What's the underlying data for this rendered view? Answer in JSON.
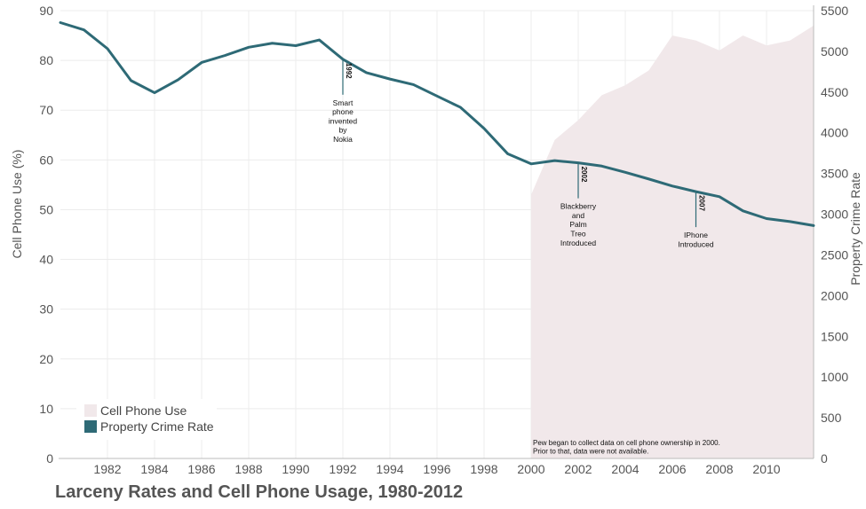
{
  "chart_data": {
    "type": "line",
    "title": "Larceny Rates and Cell Phone Usage, 1980-2012",
    "xlabel": "",
    "ylabel_left": "Cell Phone Use (%)",
    "ylabel_right": "Property Crime Rate",
    "xlim": [
      1980,
      2012
    ],
    "ylim_left": [
      0,
      90
    ],
    "ylim_right": [
      0,
      5500
    ],
    "x_ticks": [
      "1982",
      "1984",
      "1986",
      "1988",
      "1990",
      "1992",
      "1994",
      "1996",
      "1998",
      "2000",
      "2002",
      "2004",
      "2006",
      "2008",
      "2010"
    ],
    "y_left_ticks": [
      "0",
      "10",
      "20",
      "30",
      "40",
      "50",
      "60",
      "70",
      "80",
      "90"
    ],
    "y_right_ticks": [
      "0",
      "500",
      "1000",
      "1500",
      "2000",
      "2500",
      "3000",
      "3500",
      "4000",
      "4500",
      "5000",
      "5500"
    ],
    "grid": true,
    "legend_position": "bottom-left",
    "series": [
      {
        "name": "Cell Phone Use",
        "kind": "area",
        "axis": "left",
        "color": "#f1e8ea",
        "x": [
          2000,
          2001,
          2002,
          2003,
          2004,
          2005,
          2006,
          2007,
          2008,
          2009,
          2010,
          2011,
          2012
        ],
        "y": [
          53,
          64,
          68,
          73,
          75,
          78,
          85,
          84,
          82,
          85,
          83,
          84,
          87
        ]
      },
      {
        "name": "Property Crime Rate",
        "kind": "line",
        "axis": "right",
        "color": "#2e6a76",
        "x": [
          1980,
          1981,
          1982,
          1983,
          1984,
          1985,
          1986,
          1987,
          1988,
          1989,
          1990,
          1991,
          1992,
          1993,
          1994,
          1995,
          1996,
          1997,
          1998,
          1999,
          2000,
          2001,
          2002,
          2003,
          2004,
          2005,
          2006,
          2007,
          2008,
          2009,
          2010,
          2011,
          2012
        ],
        "y": [
          5353,
          5264,
          5033,
          4641,
          4492,
          4651,
          4863,
          4950,
          5050,
          5100,
          5070,
          5140,
          4903,
          4738,
          4660,
          4591,
          4451,
          4312,
          4053,
          3743,
          3618,
          3658,
          3631,
          3591,
          3514,
          3432,
          3346,
          3277,
          3215,
          3041,
          2946,
          2909,
          2860
        ]
      }
    ],
    "annotations": [
      {
        "year": "1992",
        "x": 1992,
        "lines": [
          "Smart",
          "phone",
          "invented",
          "by",
          "Nokia"
        ]
      },
      {
        "year": "2002",
        "x": 2002,
        "lines": [
          "Blackberry",
          "and",
          "Palm",
          "Treo",
          "Introduced"
        ]
      },
      {
        "year": "2007",
        "x": 2007,
        "lines": [
          "IPhone",
          "Introduced"
        ]
      }
    ],
    "note_lines": [
      "Pew began to collect data on cell phone ownership in 2000.",
      "Prior to that, data were not available."
    ]
  }
}
